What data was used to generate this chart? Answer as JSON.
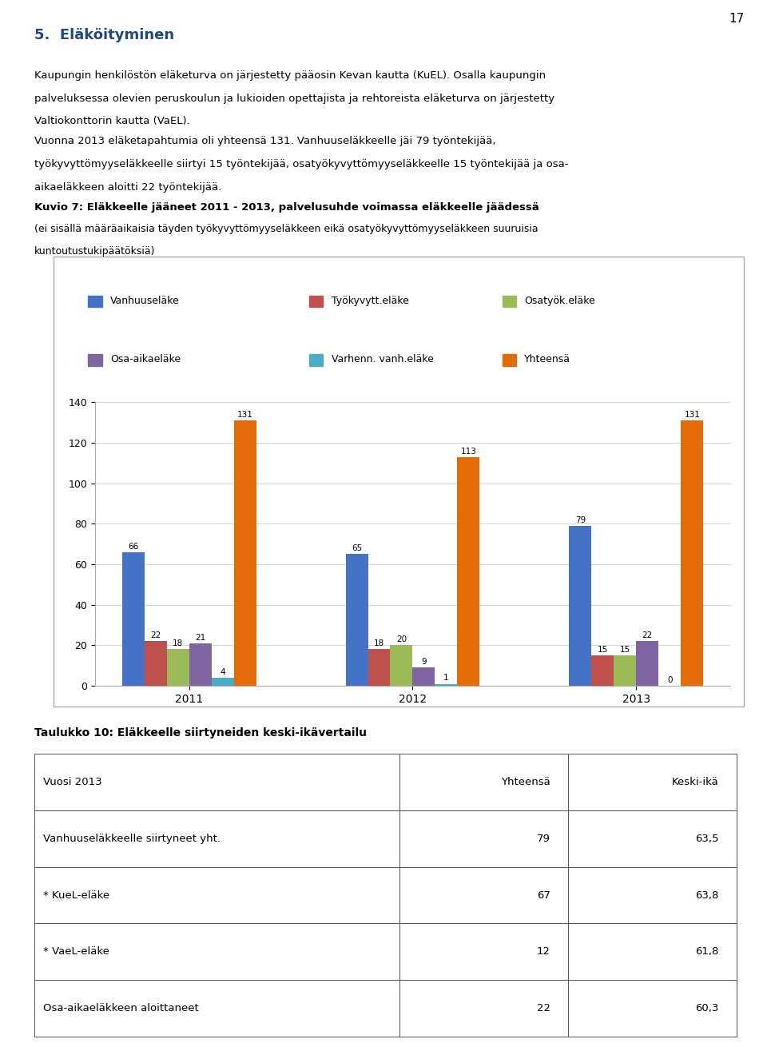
{
  "page_number": "17",
  "heading": "5.  Eläköityminen",
  "para1_lines": [
    "Kaupungin henkilöstön eläketurva on järjestetty pääosin Kevan kautta (KuEL). Osalla kaupungin",
    "palveluksessa olevien peruskoulun ja lukioiden opettajista ja rehtoreista eläketurva on järjestetty",
    "Valtiokonttorin kautta (VaEL)."
  ],
  "para2_lines": [
    "Vuonna 2013 eläketapahtumia oli yhteensä 131. Vanhuuseläkkeelle jäi 79 työntekijää,",
    "työkyvyttömyyseläkkeelle siirtyi 15 työntekijää, osatyökyvyttömyyseläkkeelle 15 työntekijää ja osa-",
    "aikaeläkkeen aloitti 22 työntekijää."
  ],
  "chart_title": "Kuvio 7: Eläkkeelle jääneet 2011 - 2013, palvelusuhde voimassa eläkkeelle jäädessä",
  "chart_subtitle_lines": [
    "(ei sisällä määräaikaisia täyden työkyvyttömyyseläkkeen eikä osatyökyvyttömyyseläkkeen suuruisia",
    "kuntoutustukipäätöksiä)"
  ],
  "legend_labels": [
    "Vanhuuseläke",
    "Työkyvytt.eläke",
    "Osatyök.eläke",
    "Osa-aikaeläke",
    "Varhenn. vanh.eläke",
    "Yhteensä"
  ],
  "legend_colors": [
    "#4472C4",
    "#C0504D",
    "#9BBB59",
    "#8064A2",
    "#4BACC6",
    "#E36C09"
  ],
  "years": [
    "2011",
    "2012",
    "2013"
  ],
  "series": {
    "Vanhuuseläke": [
      66,
      65,
      79
    ],
    "Työkyvytt.eläke": [
      22,
      18,
      15
    ],
    "Osatyök.eläke": [
      18,
      20,
      15
    ],
    "Osa-aikaeläke": [
      21,
      9,
      22
    ],
    "Varhenn. vanh.eläke": [
      4,
      1,
      0
    ],
    "Yhteensä": [
      131,
      113,
      131
    ]
  },
  "ylim": [
    0,
    140
  ],
  "yticks": [
    0,
    20,
    40,
    60,
    80,
    100,
    120,
    140
  ],
  "table_title": "Taulukko 10: Eläkkeelle siirtyneiden keski-ikävertailu",
  "table_headers": [
    "Vuosi 2013",
    "Yhteensä",
    "Keski-ikä"
  ],
  "table_rows": [
    [
      "Vanhuuseläkkeelle siirtyneet yht.",
      "79",
      "63,5"
    ],
    [
      "* KueL-eläke",
      "67",
      "63,8"
    ],
    [
      "* VaeL-eläke",
      "12",
      "61,8"
    ],
    [
      "Osa-aikaeläkkeen aloittaneet",
      "22",
      "60,3"
    ]
  ]
}
